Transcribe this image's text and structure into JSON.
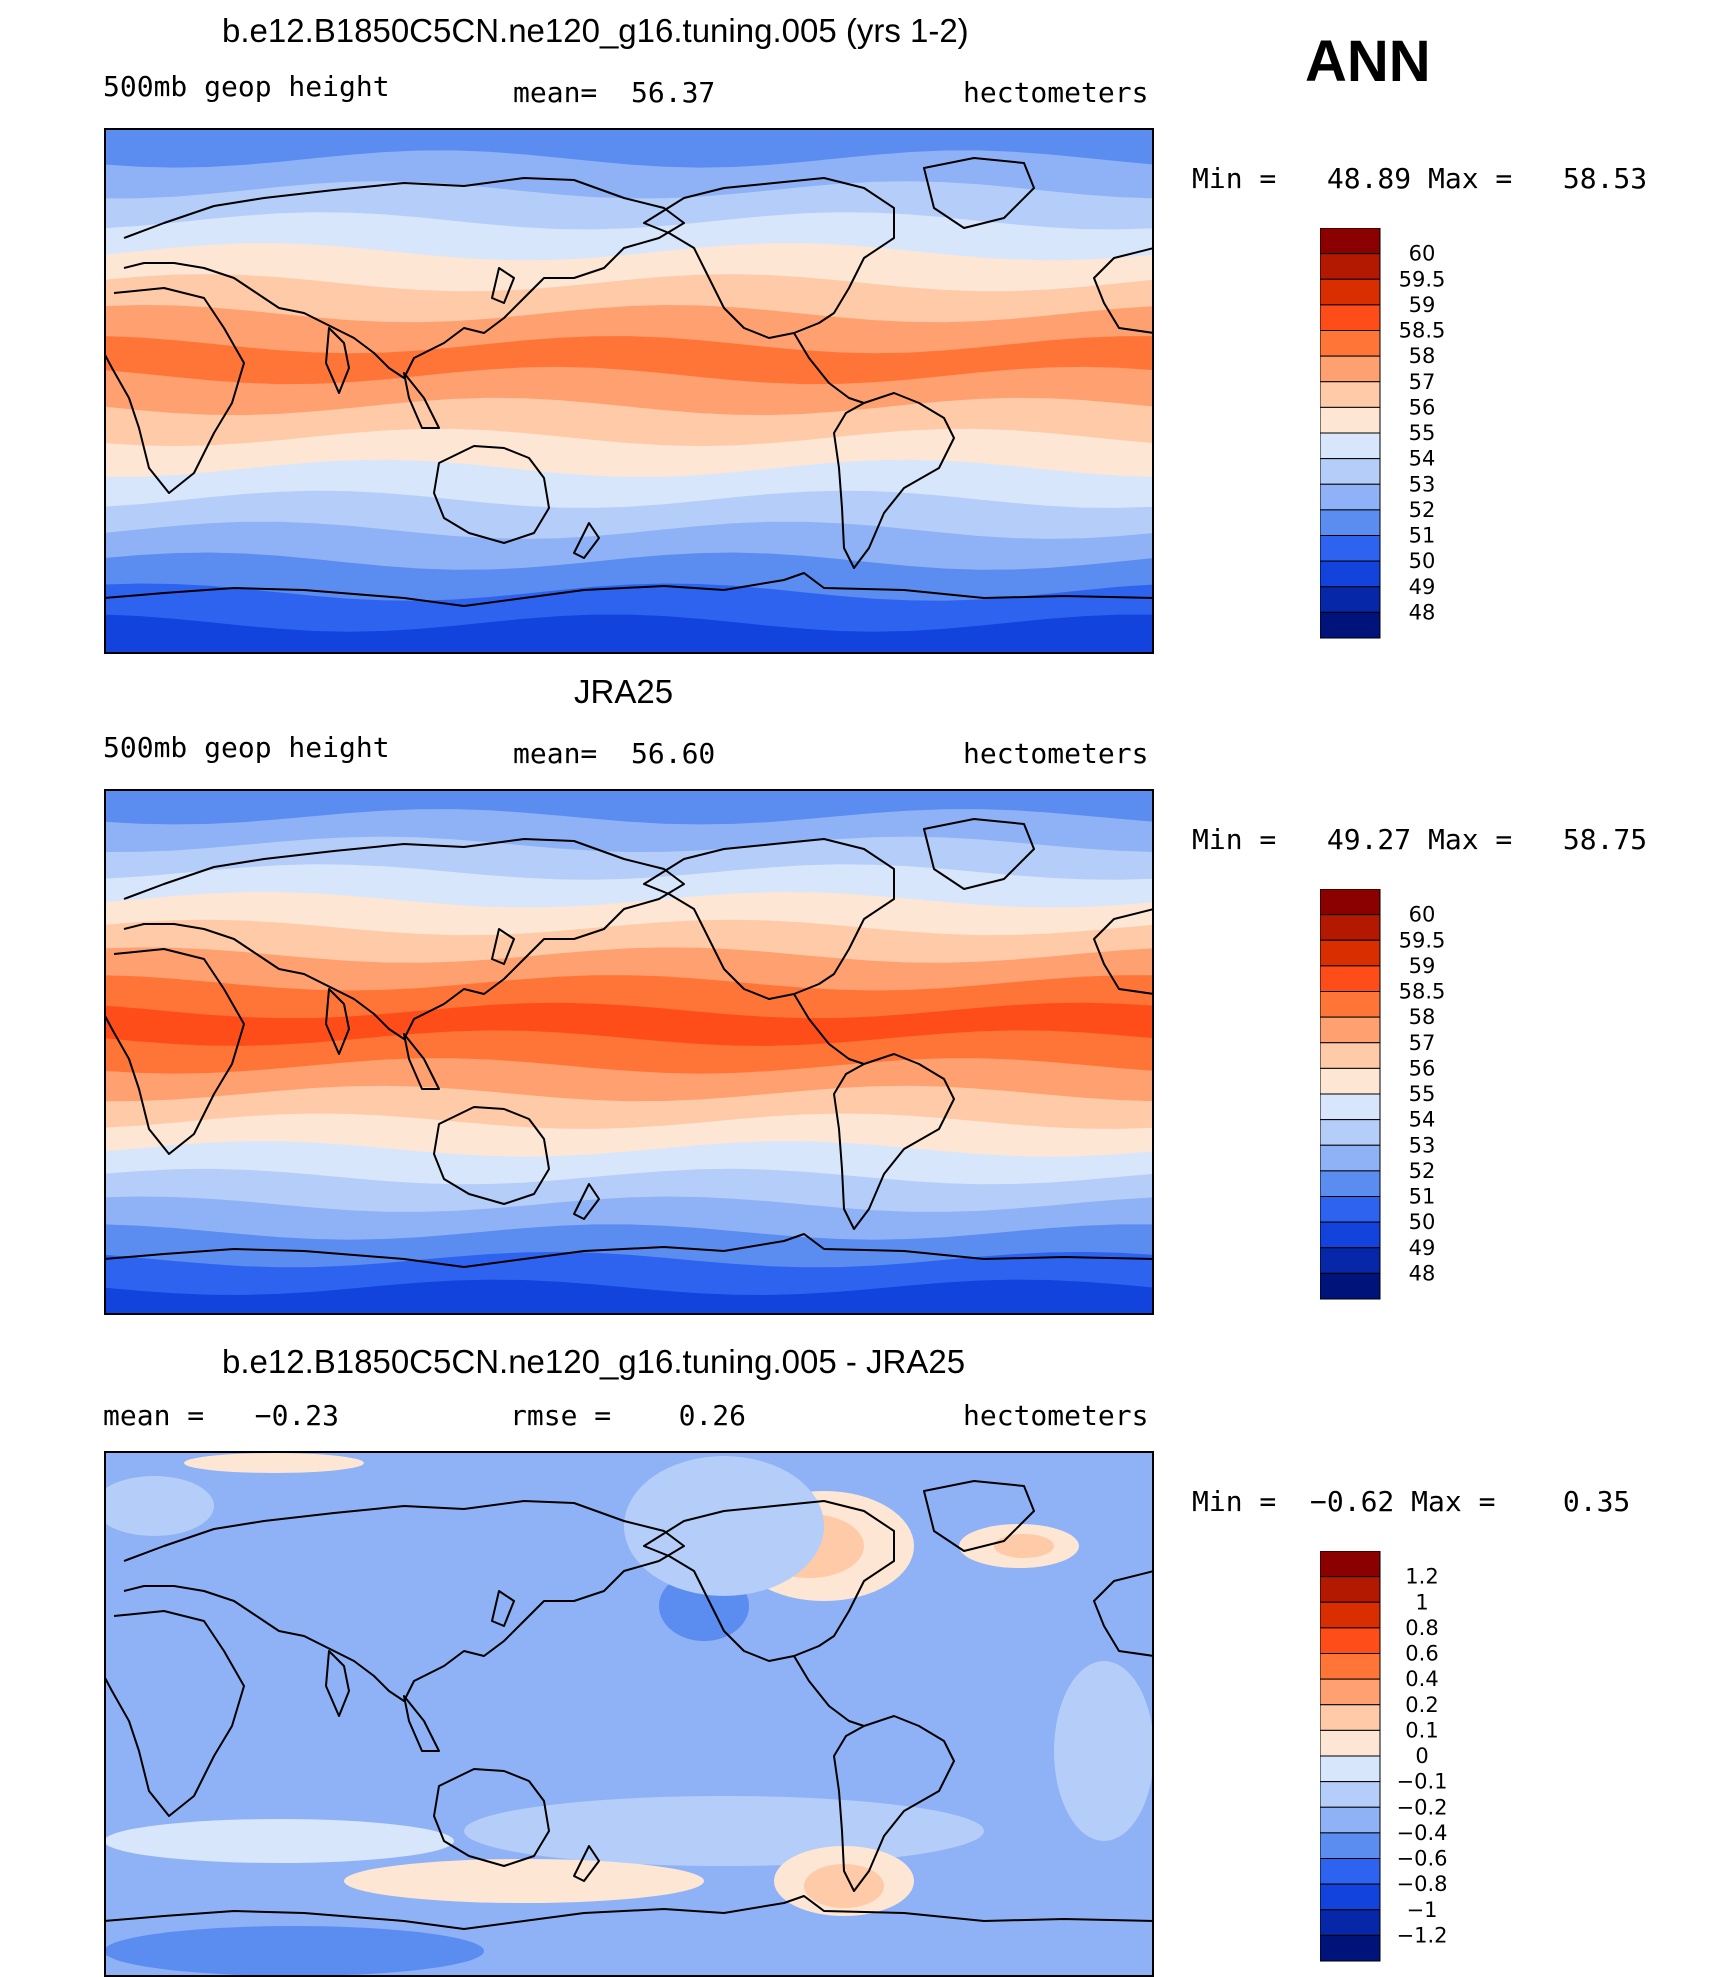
{
  "season": "ANN",
  "units_label": "hectometers",
  "panels": [
    {
      "id": "model",
      "title": "b.e12.B1850C5CN.ne120_g16.tuning.005 (yrs 1-2)",
      "left_label": "500mb geop height",
      "center_label": "mean=  56.37",
      "right_label": "hectometers",
      "minmax": "Min =   48.89 Max =   58.53",
      "colorbar_levels": [
        "60",
        "59.5",
        "59",
        "58.5",
        "58",
        "57",
        "56",
        "55",
        "54",
        "53",
        "52",
        "51",
        "50",
        "49",
        "48"
      ],
      "colorbar_colors": [
        "#8b0000",
        "#b31800",
        "#d92e00",
        "#ff4d1a",
        "#ff7538",
        "#ffa070",
        "#ffcaa8",
        "#fde6d4",
        "#d8e6fc",
        "#b5cdf9",
        "#8eb2f5",
        "#5b8cf0",
        "#2e63ef",
        "#1243dd",
        "#0527a8",
        "#00137a"
      ],
      "band_colors_n2s": [
        "#5b8cf0",
        "#8eb2f5",
        "#b5cdf9",
        "#d8e6fc",
        "#fde6d4",
        "#ffcaa8",
        "#ffa070",
        "#ff7538",
        "#ffa070",
        "#ffcaa8",
        "#fde6d4",
        "#d8e6fc",
        "#b5cdf9",
        "#8eb2f5",
        "#5b8cf0",
        "#2e63ef",
        "#1243dd"
      ]
    },
    {
      "id": "obs",
      "title": "JRA25",
      "left_label": "500mb geop height",
      "center_label": "mean=  56.60",
      "right_label": "hectometers",
      "minmax": "Min =   49.27 Max =   58.75",
      "colorbar_levels": [
        "60",
        "59.5",
        "59",
        "58.5",
        "58",
        "57",
        "56",
        "55",
        "54",
        "53",
        "52",
        "51",
        "50",
        "49",
        "48"
      ],
      "colorbar_colors": [
        "#8b0000",
        "#b31800",
        "#d92e00",
        "#ff4d1a",
        "#ff7538",
        "#ffa070",
        "#ffcaa8",
        "#fde6d4",
        "#d8e6fc",
        "#b5cdf9",
        "#8eb2f5",
        "#5b8cf0",
        "#2e63ef",
        "#1243dd",
        "#0527a8",
        "#00137a"
      ],
      "band_colors_n2s": [
        "#5b8cf0",
        "#8eb2f5",
        "#b5cdf9",
        "#d8e6fc",
        "#fde6d4",
        "#ffcaa8",
        "#ffa070",
        "#ff7538",
        "#ff4d1a",
        "#ff7538",
        "#ffa070",
        "#ffcaa8",
        "#fde6d4",
        "#d8e6fc",
        "#b5cdf9",
        "#8eb2f5",
        "#5b8cf0",
        "#2e63ef",
        "#1243dd"
      ]
    },
    {
      "id": "diff",
      "title": "b.e12.B1850C5CN.ne120_g16.tuning.005 - JRA25",
      "left_label": "mean =   −0.23",
      "center_label": "rmse =    0.26",
      "right_label": "hectometers",
      "minmax": "Min =  −0.62 Max =    0.35",
      "colorbar_levels": [
        "1.2",
        "1",
        "0.8",
        "0.6",
        "0.4",
        "0.2",
        "0.1",
        "0",
        "−0.1",
        "−0.2",
        "−0.4",
        "−0.6",
        "−0.8",
        "−1",
        "−1.2"
      ],
      "colorbar_colors": [
        "#8b0000",
        "#b31800",
        "#d92e00",
        "#ff4d1a",
        "#ff7538",
        "#ffa070",
        "#ffcaa8",
        "#fde6d4",
        "#d8e6fc",
        "#b5cdf9",
        "#8eb2f5",
        "#5b8cf0",
        "#2e63ef",
        "#1243dd",
        "#0527a8",
        "#00137a"
      ],
      "base_color": "#8eb2f5"
    }
  ],
  "chart_data": [
    {
      "type": "heatmap",
      "title": "b.e12.B1850C5CN.ne120_g16.tuning.005 (yrs 1-2)",
      "variable": "500mb geop height",
      "units": "hectometers",
      "season": "ANN",
      "mean": 56.37,
      "min": 48.89,
      "max": 58.53,
      "contour_levels": [
        48,
        49,
        50,
        51,
        52,
        53,
        54,
        55,
        56,
        57,
        58,
        58.5,
        59,
        59.5,
        60
      ]
    },
    {
      "type": "heatmap",
      "title": "JRA25",
      "variable": "500mb geop height",
      "units": "hectometers",
      "mean": 56.6,
      "min": 49.27,
      "max": 58.75,
      "contour_levels": [
        48,
        49,
        50,
        51,
        52,
        53,
        54,
        55,
        56,
        57,
        58,
        58.5,
        59,
        59.5,
        60
      ]
    },
    {
      "type": "heatmap",
      "title": "b.e12.B1850C5CN.ne120_g16.tuning.005 - JRA25",
      "units": "hectometers",
      "mean": -0.23,
      "rmse": 0.26,
      "min": -0.62,
      "max": 0.35,
      "contour_levels": [
        -1.2,
        -1,
        -0.8,
        -0.6,
        -0.4,
        -0.2,
        -0.1,
        0,
        0.1,
        0.2,
        0.4,
        0.6,
        0.8,
        1,
        1.2
      ]
    }
  ]
}
